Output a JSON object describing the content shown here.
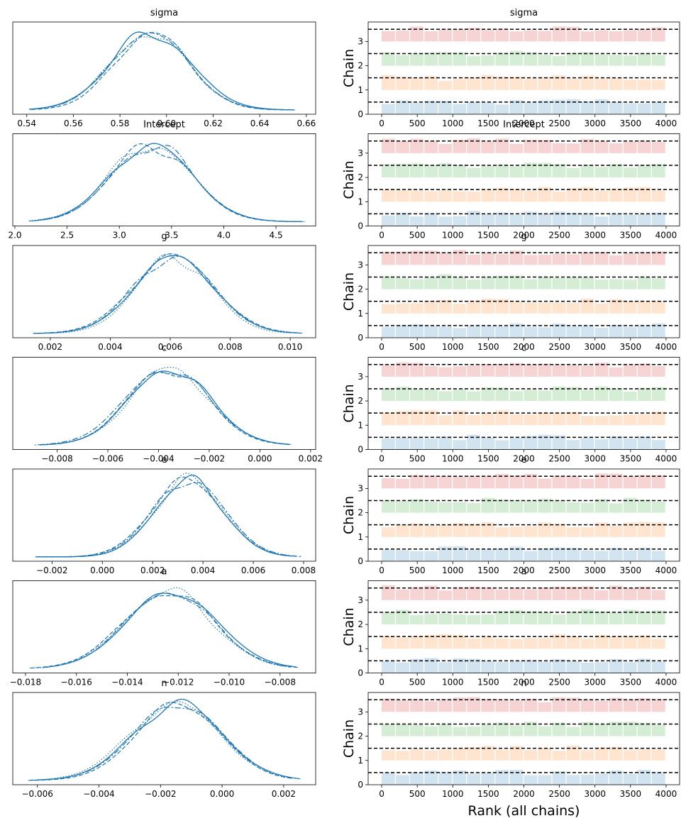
{
  "figure_type": "ArviZ rank plot (KDE + rank bars)",
  "chain_colors": [
    "#1f77b4",
    "#ff7f0e",
    "#2ca02c",
    "#d62728"
  ],
  "line_color": "#1f77b4",
  "chart_data": [
    {
      "type": "line",
      "panel": "kde",
      "title": "sigma",
      "xticks": [
        "0.54",
        "0.56",
        "0.58",
        "0.60",
        "0.62",
        "0.64",
        "0.66"
      ],
      "xlim": [
        0.534,
        0.664
      ],
      "mean": 0.593,
      "sd": 0.0165,
      "x_range": [
        0.539,
        0.658
      ]
    },
    {
      "type": "bar",
      "panel": "rank",
      "title": "sigma",
      "ylabel": "Chain",
      "yticks": [
        "0",
        "1",
        "2",
        "3"
      ],
      "xticks": [
        "0",
        "500",
        "1000",
        "1500",
        "2000",
        "2500",
        "3000",
        "3500",
        "4000"
      ],
      "xlim": [
        -190,
        4190
      ],
      "ylim": [
        0,
        3.8
      ],
      "reference_lines": [
        0.5,
        1.5,
        2.5,
        3.5
      ]
    },
    {
      "type": "line",
      "panel": "kde",
      "title": "Intercept",
      "xticks": [
        "2.0",
        "2.5",
        "3.0",
        "3.5",
        "4.0",
        "4.5"
      ],
      "xlim": [
        1.98,
        4.88
      ],
      "mean": 3.3,
      "sd": 0.38,
      "x_range": [
        2.1,
        4.78
      ]
    },
    {
      "type": "bar",
      "panel": "rank",
      "title": "Intercept",
      "ylabel": "Chain",
      "yticks": [
        "0",
        "1",
        "2",
        "3"
      ],
      "xticks": [
        "0",
        "500",
        "1000",
        "1500",
        "2000",
        "2500",
        "3000",
        "3500",
        "4000"
      ],
      "xlim": [
        -190,
        4190
      ],
      "ylim": [
        0,
        3.8
      ],
      "reference_lines": [
        0.5,
        1.5,
        2.5,
        3.5
      ]
    },
    {
      "type": "line",
      "panel": "kde",
      "title": "g",
      "xticks": [
        "0.002",
        "0.004",
        "0.006",
        "0.008",
        "0.010"
      ],
      "xlim": [
        0.00075,
        0.01085
      ],
      "mean": 0.0061,
      "sd": 0.0013,
      "x_range": [
        0.0012,
        0.0104
      ]
    },
    {
      "type": "bar",
      "panel": "rank",
      "title": "g",
      "ylabel": "Chain",
      "yticks": [
        "0",
        "1",
        "2",
        "3"
      ],
      "xticks": [
        "0",
        "500",
        "1000",
        "1500",
        "2000",
        "2500",
        "3000",
        "3500",
        "4000"
      ],
      "xlim": [
        -190,
        4190
      ],
      "ylim": [
        0,
        3.8
      ],
      "reference_lines": [
        0.5,
        1.5,
        2.5,
        3.5
      ]
    },
    {
      "type": "line",
      "panel": "kde",
      "title": "c",
      "xticks": [
        "−0.008",
        "−0.006",
        "−0.004",
        "−0.002",
        "0.000",
        "0.002"
      ],
      "xlim": [
        -0.00975,
        0.0022
      ],
      "mean": -0.0036,
      "sd": 0.0016,
      "x_range": [
        -0.0092,
        0.0017
      ]
    },
    {
      "type": "bar",
      "panel": "rank",
      "title": "c",
      "ylabel": "Chain",
      "yticks": [
        "0",
        "1",
        "2",
        "3"
      ],
      "xticks": [
        "0",
        "500",
        "1000",
        "1500",
        "2000",
        "2500",
        "3000",
        "3500",
        "4000"
      ],
      "xlim": [
        -190,
        4190
      ],
      "ylim": [
        0,
        3.8
      ],
      "reference_lines": [
        0.5,
        1.5,
        2.5,
        3.5
      ]
    },
    {
      "type": "line",
      "panel": "kde",
      "title": "e",
      "xticks": [
        "−0.002",
        "0.000",
        "0.002",
        "0.004",
        "0.006",
        "0.008"
      ],
      "xlim": [
        -0.00356,
        0.00848
      ],
      "mean": 0.0034,
      "sd": 0.0014,
      "x_range": [
        -0.003,
        0.0079
      ]
    },
    {
      "type": "bar",
      "panel": "rank",
      "title": "e",
      "ylabel": "Chain",
      "yticks": [
        "0",
        "1",
        "2",
        "3"
      ],
      "xticks": [
        "0",
        "500",
        "1000",
        "1500",
        "2000",
        "2500",
        "3000",
        "3500",
        "4000"
      ],
      "xlim": [
        -190,
        4190
      ],
      "ylim": [
        0,
        3.8
      ],
      "reference_lines": [
        0.5,
        1.5,
        2.5,
        3.5
      ]
    },
    {
      "type": "line",
      "panel": "kde",
      "title": "a",
      "xticks": [
        "−0.018",
        "−0.016",
        "−0.014",
        "−0.012",
        "−0.010",
        "−0.008"
      ],
      "xlim": [
        -0.0185,
        -0.0066
      ],
      "mean": -0.0123,
      "sd": 0.0017,
      "x_range": [
        -0.018,
        -0.0071
      ]
    },
    {
      "type": "bar",
      "panel": "rank",
      "title": "a",
      "ylabel": "Chain",
      "yticks": [
        "0",
        "1",
        "2",
        "3"
      ],
      "xticks": [
        "0",
        "500",
        "1000",
        "1500",
        "2000",
        "2500",
        "3000",
        "3500",
        "4000"
      ],
      "xlim": [
        -190,
        4190
      ],
      "ylim": [
        0,
        3.8
      ],
      "reference_lines": [
        0.5,
        1.5,
        2.5,
        3.5
      ]
    },
    {
      "type": "line",
      "panel": "kde",
      "title": "n",
      "xticks": [
        "−0.006",
        "−0.004",
        "−0.002",
        "0.000",
        "0.002"
      ],
      "xlim": [
        -0.0068,
        0.00304
      ],
      "mean": -0.0015,
      "sd": 0.0014,
      "x_range": [
        -0.0063,
        0.0026
      ]
    },
    {
      "type": "bar",
      "panel": "rank",
      "title": "n",
      "ylabel": "Chain",
      "xlabel": "Rank (all chains)",
      "yticks": [
        "0",
        "1",
        "2",
        "3"
      ],
      "xticks": [
        "0",
        "500",
        "1000",
        "1500",
        "2000",
        "2500",
        "3000",
        "3500",
        "4000"
      ],
      "xlim": [
        -190,
        4190
      ],
      "ylim": [
        0,
        3.8
      ],
      "reference_lines": [
        0.5,
        1.5,
        2.5,
        3.5
      ]
    }
  ]
}
